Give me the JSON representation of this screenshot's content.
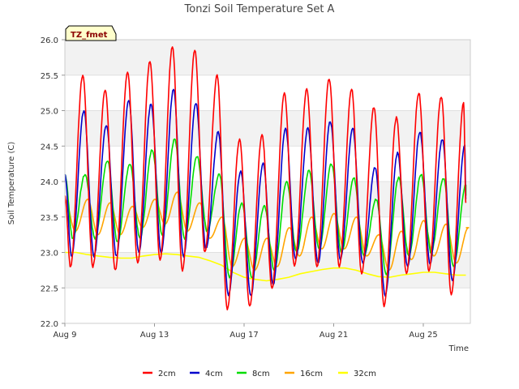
{
  "chart_data": {
    "type": "line",
    "title": "Tonzi Soil Temperature Set A",
    "xlabel": "Time",
    "ylabel": "Soil Temperature (C)",
    "badge": "TZ_fmet",
    "ylim": [
      22.0,
      26.0
    ],
    "xlim": [
      0,
      18.1
    ],
    "x_unit": "days since Aug 9",
    "yticks": [
      "22.0",
      "22.5",
      "23.0",
      "23.5",
      "24.0",
      "24.5",
      "25.0",
      "25.5",
      "26.0"
    ],
    "xticks": [
      {
        "day": 0,
        "label": "Aug 9"
      },
      {
        "day": 4,
        "label": "Aug 13"
      },
      {
        "day": 8,
        "label": "Aug 17"
      },
      {
        "day": 12,
        "label": "Aug 21"
      },
      {
        "day": 16,
        "label": "Aug 25"
      }
    ],
    "legend_position": "bottom",
    "grid": true,
    "series": [
      {
        "name": "2cm",
        "color": "#ff0000",
        "peaks": [
          25.5,
          25.3,
          25.55,
          25.7,
          25.9,
          25.85,
          25.5,
          24.6,
          24.65,
          25.25,
          25.3,
          25.45,
          25.3,
          25.05,
          24.9,
          25.25,
          25.2,
          25.1
        ],
        "troughs": [
          22.8,
          22.8,
          22.75,
          22.85,
          22.9,
          22.75,
          23.0,
          22.2,
          22.25,
          22.5,
          22.8,
          22.8,
          22.8,
          22.7,
          22.25,
          22.7,
          22.75,
          22.4
        ],
        "end": 23.7
      },
      {
        "name": "4cm",
        "color": "#0000cc",
        "peaks": [
          25.0,
          24.8,
          25.15,
          25.1,
          25.3,
          25.1,
          24.7,
          24.15,
          24.25,
          24.75,
          24.75,
          24.85,
          24.75,
          24.2,
          24.4,
          24.7,
          24.6,
          24.5
        ],
        "troughs": [
          22.95,
          22.95,
          22.95,
          23.0,
          23.0,
          22.95,
          23.05,
          22.4,
          22.4,
          22.55,
          22.9,
          22.85,
          22.9,
          22.85,
          22.4,
          22.8,
          22.85,
          22.6
        ],
        "end": 23.75
      },
      {
        "name": "8cm",
        "color": "#00dd00",
        "peaks": [
          24.1,
          24.3,
          24.25,
          24.45,
          24.6,
          24.35,
          24.1,
          23.7,
          23.65,
          24.0,
          24.15,
          24.25,
          24.05,
          23.75,
          24.05,
          24.1,
          24.05,
          23.95
        ],
        "troughs": [
          23.2,
          23.2,
          23.15,
          23.2,
          23.25,
          23.2,
          23.3,
          22.65,
          22.65,
          22.75,
          23.0,
          23.05,
          23.0,
          22.95,
          22.7,
          22.95,
          23.0,
          22.8
        ],
        "end": 23.8
      },
      {
        "name": "16cm",
        "color": "#ffa500",
        "peaks": [
          23.75,
          23.7,
          23.65,
          23.75,
          23.85,
          23.7,
          23.5,
          23.2,
          23.2,
          23.35,
          23.5,
          23.55,
          23.5,
          23.25,
          23.3,
          23.45,
          23.4,
          23.35
        ],
        "troughs": [
          23.3,
          23.25,
          23.25,
          23.35,
          23.4,
          23.3,
          23.2,
          22.8,
          22.75,
          22.8,
          22.95,
          23.05,
          23.05,
          22.95,
          22.75,
          22.9,
          22.95,
          22.85
        ],
        "end": 23.35
      },
      {
        "name": "32cm",
        "color": "#ffff00",
        "points": [
          [
            0,
            23.0
          ],
          [
            0.5,
            23.0
          ],
          [
            1,
            22.97
          ],
          [
            1.5,
            22.95
          ],
          [
            2,
            22.93
          ],
          [
            2.5,
            22.92
          ],
          [
            3,
            22.92
          ],
          [
            3.5,
            22.95
          ],
          [
            4,
            22.97
          ],
          [
            4.5,
            22.98
          ],
          [
            5,
            22.97
          ],
          [
            5.5,
            22.95
          ],
          [
            6,
            22.93
          ],
          [
            6.5,
            22.88
          ],
          [
            7,
            22.82
          ],
          [
            7.5,
            22.72
          ],
          [
            8,
            22.65
          ],
          [
            8.5,
            22.62
          ],
          [
            9,
            22.6
          ],
          [
            9.5,
            22.62
          ],
          [
            10,
            22.65
          ],
          [
            10.5,
            22.7
          ],
          [
            11,
            22.73
          ],
          [
            11.5,
            22.76
          ],
          [
            12,
            22.78
          ],
          [
            12.5,
            22.78
          ],
          [
            13,
            22.75
          ],
          [
            13.5,
            22.7
          ],
          [
            14,
            22.66
          ],
          [
            14.5,
            22.65
          ],
          [
            15,
            22.68
          ],
          [
            15.5,
            22.7
          ],
          [
            16,
            22.72
          ],
          [
            16.5,
            22.72
          ],
          [
            17,
            22.7
          ],
          [
            17.5,
            22.68
          ],
          [
            17.9,
            22.68
          ]
        ]
      }
    ]
  }
}
